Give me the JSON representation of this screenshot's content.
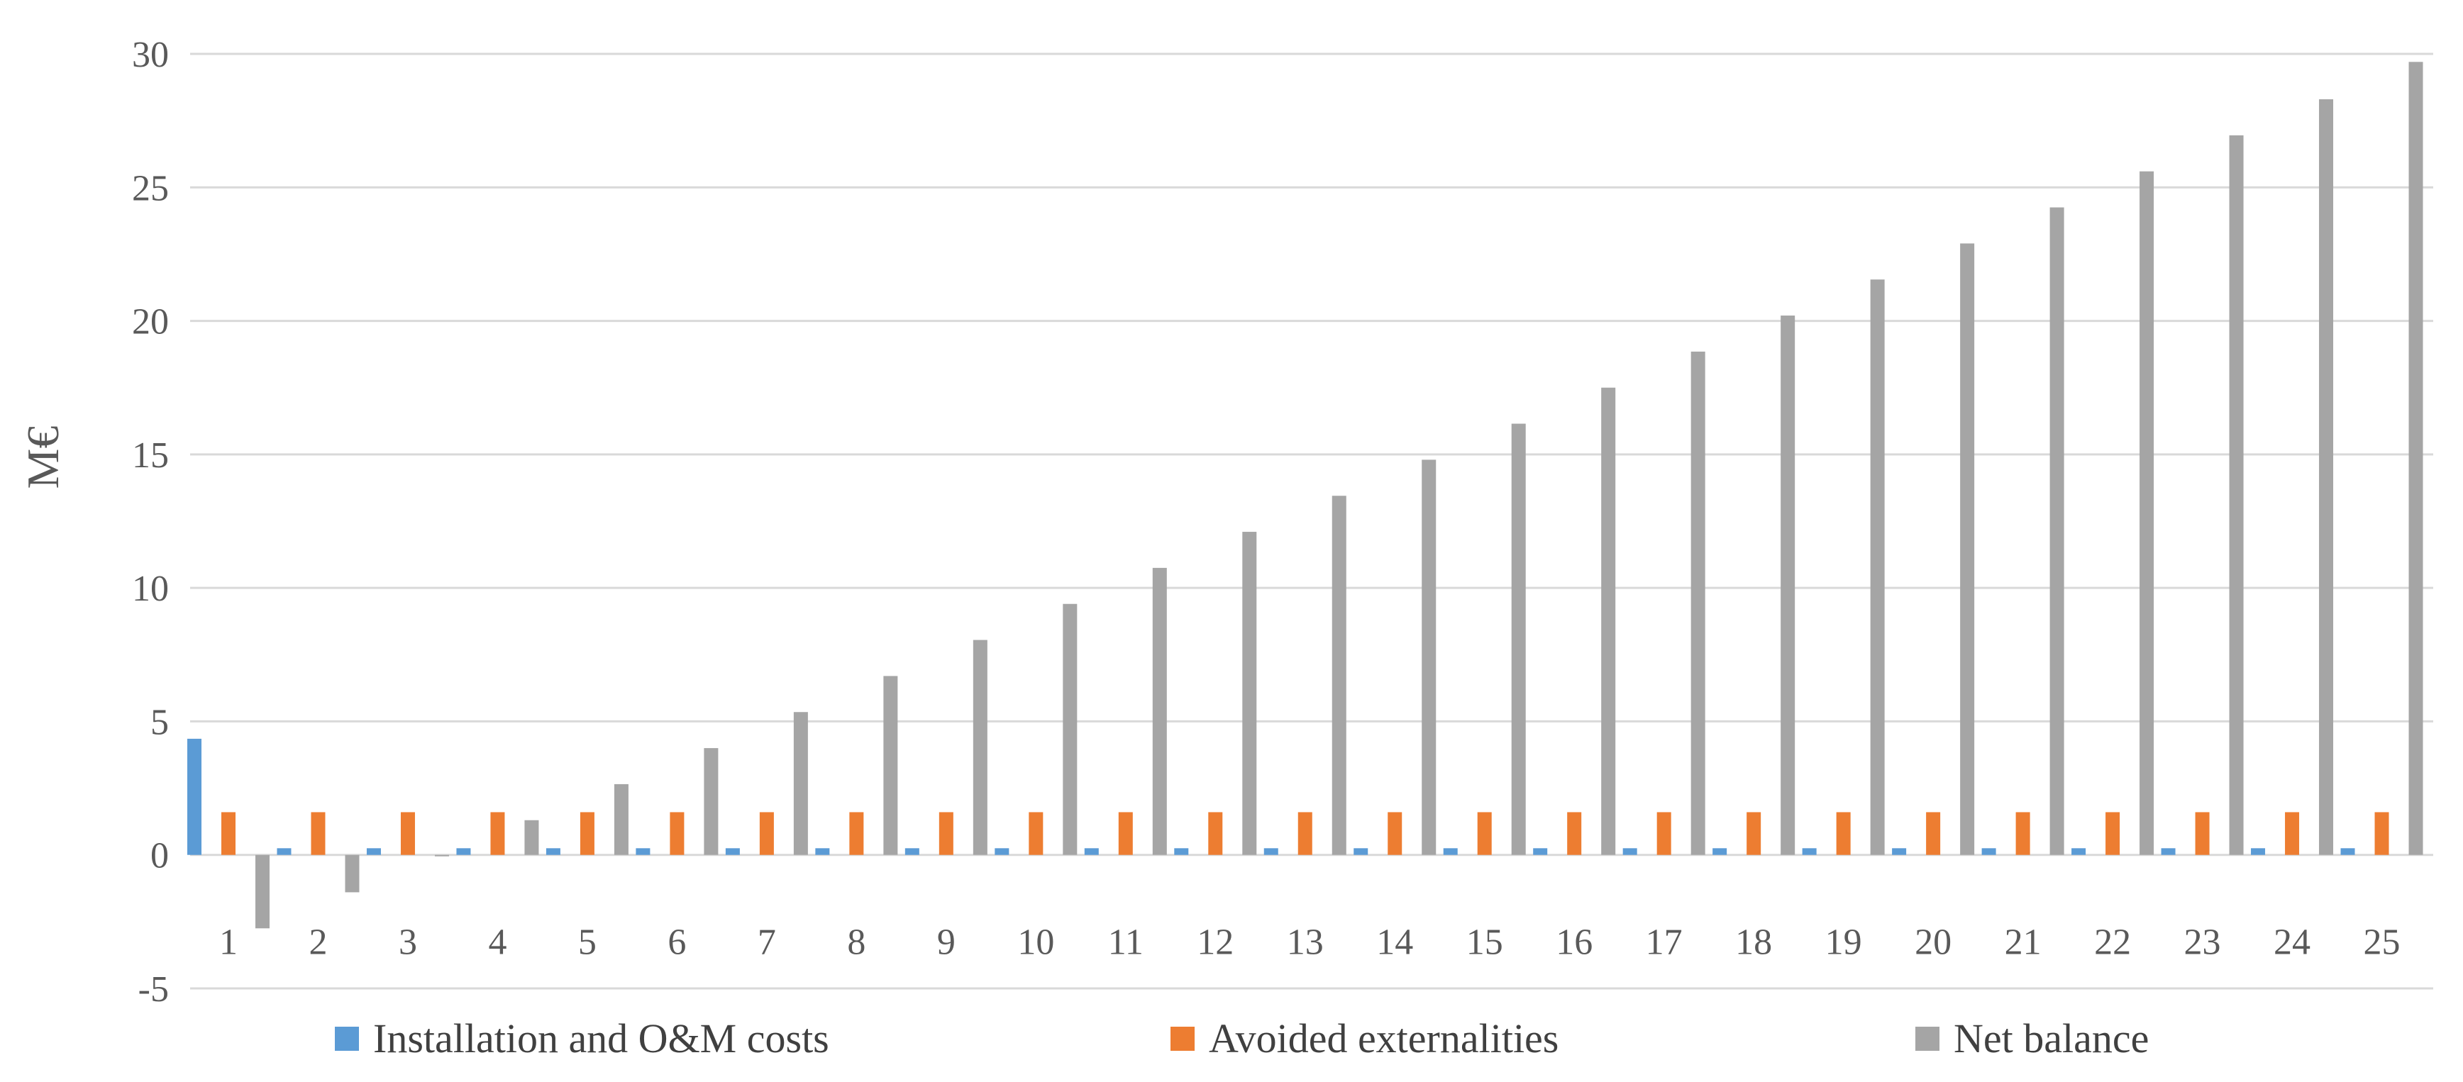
{
  "chart_data": {
    "type": "bar",
    "title": "",
    "xlabel": "",
    "ylabel": "M€",
    "ylim": [
      -5,
      30
    ],
    "yticks": [
      -5,
      0,
      5,
      10,
      15,
      20,
      25,
      30
    ],
    "ytick_labels": [
      "-5",
      "0",
      "5",
      "10",
      "15",
      "20",
      "25",
      "30"
    ],
    "grid": true,
    "legend_position": "bottom",
    "categories": [
      "1",
      "2",
      "3",
      "4",
      "5",
      "6",
      "7",
      "8",
      "9",
      "10",
      "11",
      "12",
      "13",
      "14",
      "15",
      "16",
      "17",
      "18",
      "19",
      "20",
      "21",
      "22",
      "23",
      "24",
      "25"
    ],
    "series": [
      {
        "name": "Installation and O&M costs",
        "color": "#5b9bd5",
        "values": [
          4.35,
          0.25,
          0.25,
          0.25,
          0.25,
          0.25,
          0.25,
          0.25,
          0.25,
          0.25,
          0.25,
          0.25,
          0.25,
          0.25,
          0.25,
          0.25,
          0.25,
          0.25,
          0.25,
          0.25,
          0.25,
          0.25,
          0.25,
          0.25,
          0.25
        ]
      },
      {
        "name": "Avoided externalities",
        "color": "#ed7d31",
        "values": [
          1.6,
          1.6,
          1.6,
          1.6,
          1.6,
          1.6,
          1.6,
          1.6,
          1.6,
          1.6,
          1.6,
          1.6,
          1.6,
          1.6,
          1.6,
          1.6,
          1.6,
          1.6,
          1.6,
          1.6,
          1.6,
          1.6,
          1.6,
          1.6,
          1.6
        ]
      },
      {
        "name": "Net balance",
        "color": "#a5a5a5",
        "values": [
          -2.75,
          -1.4,
          -0.05,
          1.3,
          2.65,
          4.0,
          5.35,
          6.7,
          8.05,
          9.4,
          10.75,
          12.1,
          13.45,
          14.8,
          16.15,
          17.5,
          18.85,
          20.2,
          21.55,
          22.9,
          24.25,
          25.6,
          26.95,
          28.3,
          29.7
        ]
      }
    ]
  }
}
